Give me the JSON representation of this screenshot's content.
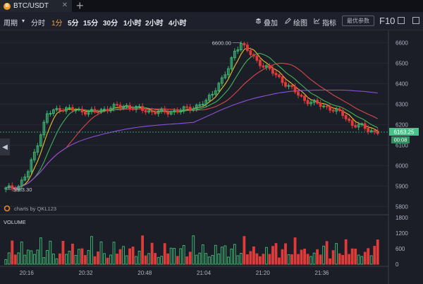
{
  "tab": {
    "title": "BTC/USDT",
    "coin_letter": "B"
  },
  "toolbar": {
    "period_label": "周期",
    "intervals": [
      {
        "label": "分时",
        "active": false
      },
      {
        "label": "1分",
        "active": true
      },
      {
        "label": "5分",
        "active": false
      },
      {
        "label": "15分",
        "active": false
      },
      {
        "label": "30分",
        "active": false
      },
      {
        "label": "1小时",
        "active": false
      },
      {
        "label": "2小时",
        "active": false
      },
      {
        "label": "4小时",
        "active": false
      }
    ],
    "overlay_label": "叠加",
    "draw_label": "绘图",
    "indicator_label": "指标",
    "param_button": "最优参数",
    "f10": "F10"
  },
  "chart": {
    "watermark": "charts by QKL123",
    "high_label": "6600.00",
    "low_label": "5883.30",
    "last_price": "6163.25",
    "countdown": "00:08",
    "volume_title": "VOLUME",
    "price_axis": [
      "6600",
      "6500",
      "6400",
      "6300",
      "6200",
      "6100",
      "6000",
      "5900",
      "5800"
    ],
    "volume_axis": [
      "1800",
      "1200",
      "600",
      "0"
    ],
    "time_axis": [
      "20:16",
      "20:32",
      "20:48",
      "21:04",
      "21:20",
      "21:36"
    ],
    "colors": {
      "up": "#3cb371",
      "down": "#e03b3b",
      "ma_fast": "#e8c22f",
      "ma_mid": "#41b45a",
      "ma_slow": "#d94848",
      "ma_long": "#8e4fd6"
    }
  },
  "chart_data": {
    "type": "candlestick",
    "pair": "BTC/USDT",
    "interval": "1分",
    "price_range": [
      5770,
      6660
    ],
    "volume_range": [
      0,
      1800
    ],
    "anchors": [
      [
        0,
        5885
      ],
      [
        4,
        5900
      ],
      [
        7,
        5970
      ],
      [
        10,
        6110
      ],
      [
        13,
        6250
      ],
      [
        17,
        6280
      ],
      [
        22,
        6270
      ],
      [
        28,
        6260
      ],
      [
        33,
        6285
      ],
      [
        38,
        6290
      ],
      [
        45,
        6265
      ],
      [
        50,
        6260
      ],
      [
        55,
        6270
      ],
      [
        59,
        6285
      ],
      [
        63,
        6310
      ],
      [
        67,
        6400
      ],
      [
        70,
        6470
      ],
      [
        72,
        6560
      ],
      [
        74,
        6600
      ],
      [
        76,
        6560
      ],
      [
        79,
        6510
      ],
      [
        82,
        6480
      ],
      [
        85,
        6440
      ],
      [
        88,
        6400
      ],
      [
        91,
        6360
      ],
      [
        94,
        6320
      ],
      [
        98,
        6300
      ],
      [
        102,
        6280
      ],
      [
        106,
        6250
      ],
      [
        109,
        6200
      ],
      [
        112,
        6190
      ],
      [
        115,
        6170
      ],
      [
        117,
        6163
      ]
    ],
    "volume_pattern": [
      300,
      500,
      900,
      400,
      700,
      1000,
      350,
      600,
      800,
      450,
      550,
      1100,
      380,
      650,
      900,
      420
    ]
  }
}
